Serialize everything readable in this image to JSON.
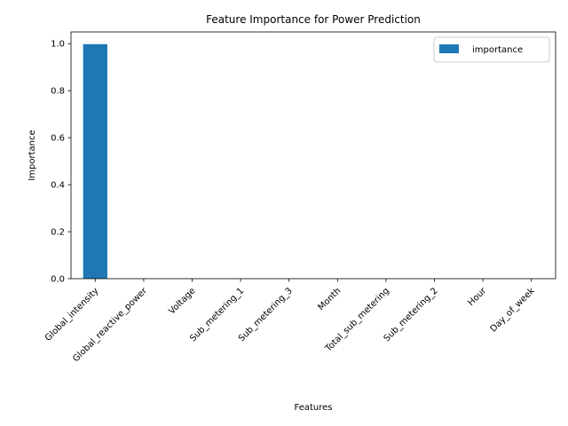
{
  "chart_data": {
    "type": "bar",
    "title": "Feature Importance for Power Prediction",
    "xlabel": "Features",
    "ylabel": "Importance",
    "categories": [
      "Global_intensity",
      "Global_reactive_power",
      "Voltage",
      "Sub_metering_1",
      "Sub_metering_3",
      "Month",
      "Total_sub_metering",
      "Sub_metering_2",
      "Hour",
      "Day_of_week"
    ],
    "series": [
      {
        "name": "importance",
        "values": [
          0.998,
          0.0005,
          0.0004,
          0.0003,
          0.0002,
          0.0001,
          0.0001,
          0.0001,
          0.0001,
          0.0001
        ],
        "color": "#1f77b4"
      }
    ],
    "ylim": [
      0,
      1.05
    ],
    "yticks": [
      0.0,
      0.2,
      0.4,
      0.6,
      0.8,
      1.0
    ],
    "ytick_labels": [
      "0.0",
      "0.2",
      "0.4",
      "0.6",
      "0.8",
      "1.0"
    ],
    "grid": false,
    "legend": "top-right"
  }
}
